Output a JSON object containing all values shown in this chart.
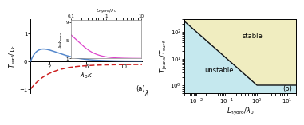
{
  "panel_a": {
    "xlim": [
      0,
      12
    ],
    "ylim": [
      -1.15,
      1.5
    ],
    "xlabel": "$\\lambda_0 k$",
    "ylabel": "$T_{\\mathrm{surf}}/\\tau_k$",
    "xticks": [
      2,
      6,
      10
    ],
    "yticks": [
      -1,
      0,
      1
    ],
    "blue_color": "#5588cc",
    "red_color": "#cc2222",
    "label_a": "(a)"
  },
  "panel_a_inset": {
    "xlim": [
      0.1,
      10
    ],
    "ylim": [
      1,
      9.5
    ],
    "xlabel": "$L_{\\mathrm{hydro}}/\\lambda_0$",
    "ylabel": "$\\lambda_0 k_{\\mathrm{max}}$",
    "xticks": [
      0.1,
      1,
      10
    ],
    "yticks": [
      1,
      5,
      9
    ],
    "magenta_color": "#dd44cc"
  },
  "panel_b": {
    "xlim": [
      0.004,
      20
    ],
    "ylim": [
      0.5,
      300
    ],
    "xlabel": "$L_{\\mathrm{hydro}}/\\lambda_0$",
    "ylabel": "$T_{\\mathrm{jeans}}/T_{\\mathrm{surf}}$",
    "stable_color": "#f0edc0",
    "unstable_color": "#c5e8ee",
    "label_b": "(b)",
    "boundary_color": "#111111",
    "stable_label": "stable",
    "unstable_label": "unstable"
  }
}
